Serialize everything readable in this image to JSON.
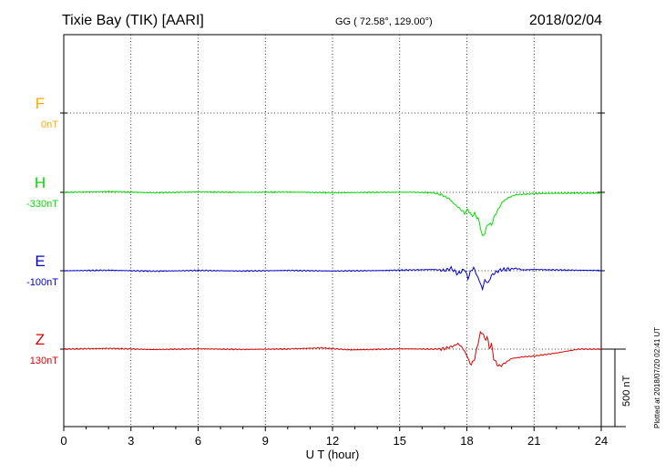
{
  "header": {
    "station": "Tixie Bay (TIK)  [AARI]",
    "coords": "GG ( 72.58°, 129.00°)",
    "date": "2018/02/04"
  },
  "plotted_note": "Plotted at 2018/07/20 02:41 UT",
  "scale_label": "500 nT",
  "chart_data": {
    "type": "line",
    "xlabel": "U T (hour)",
    "xlim": [
      0,
      24
    ],
    "xticks": [
      "0",
      "3",
      "6",
      "9",
      "12",
      "15",
      "18",
      "21",
      "24"
    ],
    "grid": true,
    "series": [
      {
        "name": "F",
        "baseline_label": "0nT",
        "color": "#ffaa00",
        "x": [],
        "y": []
      },
      {
        "name": "H",
        "baseline_label": "-330nT",
        "color": "#00dd00",
        "x": [
          0,
          2,
          4,
          6,
          8,
          10,
          12,
          14,
          15.5,
          16.5,
          16.9,
          17.2,
          17.4,
          17.6,
          17.8,
          17.9,
          18.05,
          18.2,
          18.35,
          18.5,
          18.6,
          18.7,
          18.8,
          18.95,
          19.1,
          19.25,
          19.4,
          19.6,
          19.9,
          20.2,
          20.6,
          21,
          22,
          23,
          24
        ],
        "y": [
          0,
          5,
          -3,
          3,
          0,
          2,
          -3,
          0,
          1,
          -3,
          -18,
          -40,
          -70,
          -95,
          -120,
          -135,
          -110,
          -150,
          -140,
          -170,
          -220,
          -290,
          -260,
          -200,
          -210,
          -150,
          -110,
          -60,
          -30,
          -15,
          -12,
          -8,
          -6,
          -5,
          -5
        ]
      },
      {
        "name": "E",
        "baseline_label": "-100nT",
        "color": "#0000cc",
        "x": [
          0,
          2,
          4,
          6,
          8,
          10,
          12,
          14,
          15.5,
          16.5,
          17,
          17.3,
          17.6,
          17.9,
          18.05,
          18.15,
          18.3,
          18.45,
          18.6,
          18.7,
          18.8,
          18.95,
          19.1,
          19.3,
          19.5,
          19.8,
          20.2,
          20.5,
          21,
          22,
          23,
          24
        ],
        "y": [
          0,
          3,
          -3,
          2,
          -2,
          2,
          -2,
          1,
          5,
          8,
          2,
          15,
          -20,
          10,
          -50,
          -10,
          20,
          -30,
          -80,
          -120,
          -60,
          -80,
          -30,
          -10,
          5,
          10,
          15,
          5,
          8,
          5,
          3,
          2
        ]
      },
      {
        "name": "Z",
        "baseline_label": "130nT",
        "color": "#dd0000",
        "x": [
          0,
          2,
          4,
          6,
          8,
          10,
          11.5,
          12.8,
          13.5,
          15,
          16.5,
          17,
          17.4,
          17.6,
          17.8,
          18,
          18.1,
          18.2,
          18.35,
          18.5,
          18.6,
          18.7,
          18.8,
          18.9,
          19,
          19.1,
          19.2,
          19.35,
          19.5,
          19.7,
          20,
          20.5,
          21,
          22,
          23,
          24
        ],
        "y": [
          0,
          5,
          -3,
          2,
          -2,
          1,
          8,
          -5,
          -3,
          2,
          0,
          3,
          20,
          35,
          10,
          -40,
          -80,
          -100,
          -60,
          40,
          100,
          110,
          60,
          80,
          10,
          30,
          -60,
          -100,
          -110,
          -90,
          -60,
          -50,
          -45,
          -25,
          0,
          0
        ]
      }
    ]
  }
}
